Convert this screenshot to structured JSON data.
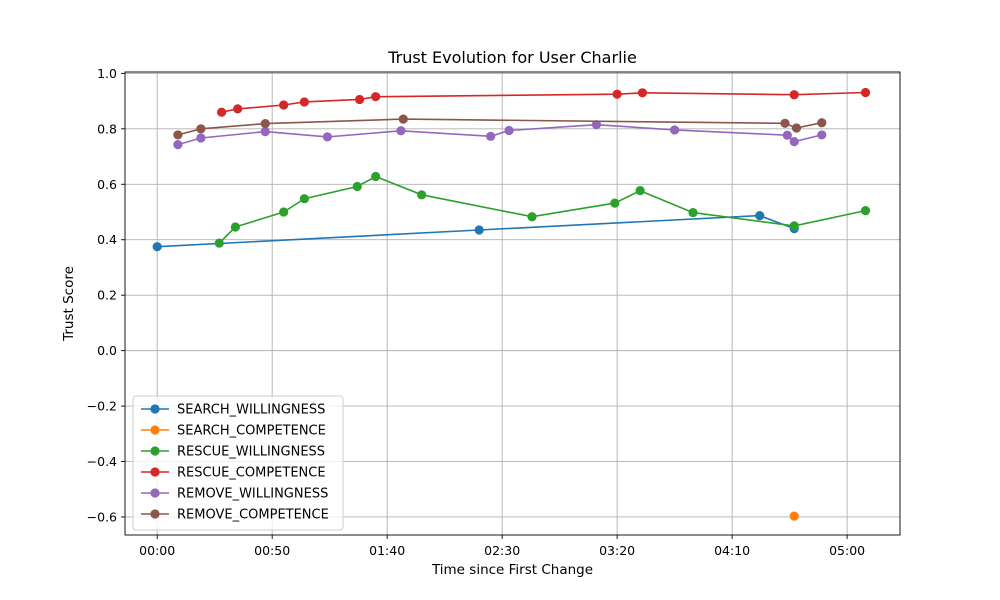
{
  "chart_data": {
    "type": "line",
    "title": "Trust Evolution for User Charlie",
    "xlabel": "Time since First Change",
    "ylabel": "Trust Score",
    "x_unit": "minutes",
    "xlim": [
      -14,
      323
    ],
    "ylim": [
      -0.665,
      1.005
    ],
    "x_ticks": [
      0,
      50,
      100,
      150,
      200,
      250,
      300
    ],
    "x_tick_labels": [
      "00:00",
      "00:50",
      "01:40",
      "02:30",
      "03:20",
      "04:10",
      "05:00"
    ],
    "y_ticks": [
      -0.6,
      -0.4,
      -0.2,
      0.0,
      0.2,
      0.4,
      0.6,
      0.8,
      1.0
    ],
    "y_tick_labels": [
      "−0.6",
      "−0.4",
      "−0.2",
      "0.0",
      "0.2",
      "0.4",
      "0.6",
      "0.8",
      "1.0"
    ],
    "grid": true,
    "legend_position": "lower-left",
    "series": [
      {
        "name": "SEARCH_WILLINGNESS",
        "color": "#1f77b4",
        "x": [
          0,
          140,
          262,
          277
        ],
        "y": [
          0.375,
          0.435,
          0.487,
          0.44
        ]
      },
      {
        "name": "SEARCH_COMPETENCE",
        "color": "#ff7f0e",
        "x": [
          277
        ],
        "y": [
          -0.597
        ]
      },
      {
        "name": "RESCUE_WILLINGNESS",
        "color": "#2ca02c",
        "x": [
          27,
          34,
          55,
          64,
          87,
          95,
          115,
          163,
          199,
          210,
          233,
          277,
          308
        ],
        "y": [
          0.388,
          0.446,
          0.5,
          0.548,
          0.592,
          0.628,
          0.562,
          0.483,
          0.532,
          0.577,
          0.498,
          0.45,
          0.505
        ]
      },
      {
        "name": "RESCUE_COMPETENCE",
        "color": "#d62728",
        "x": [
          28,
          35,
          55,
          64,
          88,
          95,
          200,
          211,
          277,
          308
        ],
        "y": [
          0.86,
          0.872,
          0.886,
          0.897,
          0.906,
          0.916,
          0.925,
          0.93,
          0.923,
          0.931
        ]
      },
      {
        "name": "REMOVE_WILLINGNESS",
        "color": "#9467bd",
        "x": [
          9,
          19,
          47,
          74,
          106,
          145,
          153,
          191,
          225,
          274,
          277,
          289
        ],
        "y": [
          0.743,
          0.767,
          0.79,
          0.771,
          0.793,
          0.773,
          0.794,
          0.815,
          0.796,
          0.777,
          0.754,
          0.778
        ]
      },
      {
        "name": "REMOVE_COMPETENCE",
        "color": "#8c564b",
        "x": [
          9,
          19,
          47,
          107,
          273,
          278,
          289
        ],
        "y": [
          0.778,
          0.8,
          0.819,
          0.835,
          0.82,
          0.803,
          0.822
        ]
      }
    ]
  }
}
